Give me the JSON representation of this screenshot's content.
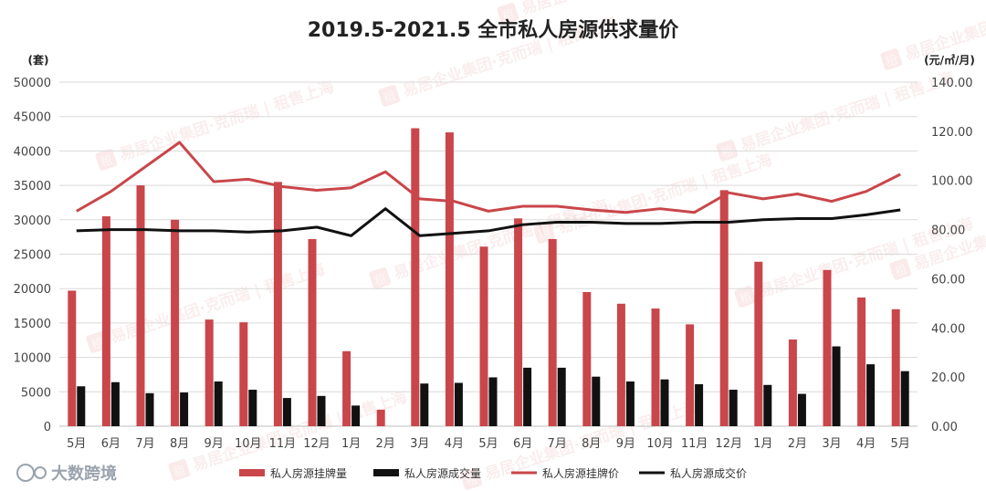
{
  "chart_data": {
    "type": "bar",
    "title": "2019.5-2021.5 全市私人房源供求量价",
    "y_left_unit": "(套)",
    "y_right_unit": "(元/㎡/月)",
    "ylim_left": [
      0,
      50000
    ],
    "ylim_right": [
      0,
      140
    ],
    "y_left_ticks": [
      "0",
      "5000",
      "10000",
      "15000",
      "20000",
      "25000",
      "30000",
      "35000",
      "40000",
      "45000",
      "50000"
    ],
    "y_right_ticks": [
      "0.00",
      "20.00",
      "40.00",
      "60.00",
      "80.00",
      "100.00",
      "120.00",
      "140.00"
    ],
    "categories": [
      "5月",
      "6月",
      "7月",
      "8月",
      "9月",
      "10月",
      "11月",
      "12月",
      "1月",
      "2月",
      "3月",
      "4月",
      "5月",
      "6月",
      "7月",
      "8月",
      "9月",
      "10月",
      "11月",
      "12月",
      "1月",
      "2月",
      "3月",
      "4月",
      "5月"
    ],
    "series": [
      {
        "name": "私人房源挂牌量",
        "kind": "bar",
        "axis": "left",
        "color": "#c9464a",
        "values": [
          19700,
          30500,
          35000,
          30000,
          15500,
          15100,
          35500,
          27200,
          10900,
          2400,
          43300,
          42700,
          26100,
          30200,
          27200,
          19500,
          17800,
          17100,
          14800,
          34300,
          23900,
          12600,
          22700,
          18700,
          17000
        ]
      },
      {
        "name": "私人房源成交量",
        "kind": "bar",
        "axis": "left",
        "color": "#111111",
        "values": [
          5800,
          6400,
          4800,
          4900,
          6500,
          5300,
          4100,
          4400,
          3000,
          0,
          6200,
          6300,
          7100,
          8500,
          8500,
          7200,
          6500,
          6800,
          6100,
          5300,
          6000,
          4700,
          11600,
          9000,
          8000
        ]
      },
      {
        "name": "私人房源挂牌价",
        "kind": "line",
        "axis": "right",
        "color": "#c9464a",
        "values": [
          87.5,
          95.5,
          105.5,
          115.5,
          99.5,
          100.5,
          97.5,
          96.0,
          97.0,
          103.5,
          92.5,
          91.5,
          87.5,
          89.5,
          89.5,
          88.0,
          87.0,
          88.5,
          87.0,
          95.0,
          92.5,
          94.5,
          91.5,
          95.5,
          102.5
        ]
      },
      {
        "name": "私人房源成交价",
        "kind": "line",
        "axis": "right",
        "color": "#111111",
        "values": [
          79.5,
          80.0,
          80.0,
          79.5,
          79.5,
          79.0,
          79.5,
          81.0,
          77.5,
          88.5,
          77.5,
          78.5,
          79.5,
          82.0,
          83.0,
          83.0,
          82.5,
          82.5,
          83.0,
          83.0,
          84.0,
          84.5,
          84.5,
          86.0,
          88.0
        ]
      }
    ],
    "legend_position": "bottom",
    "grid": true
  },
  "brand": {
    "logo_text": "大数跨境",
    "watermark_text": "易居企业集团·克而瑞 | 租售上海",
    "watermark_seal": "租"
  }
}
